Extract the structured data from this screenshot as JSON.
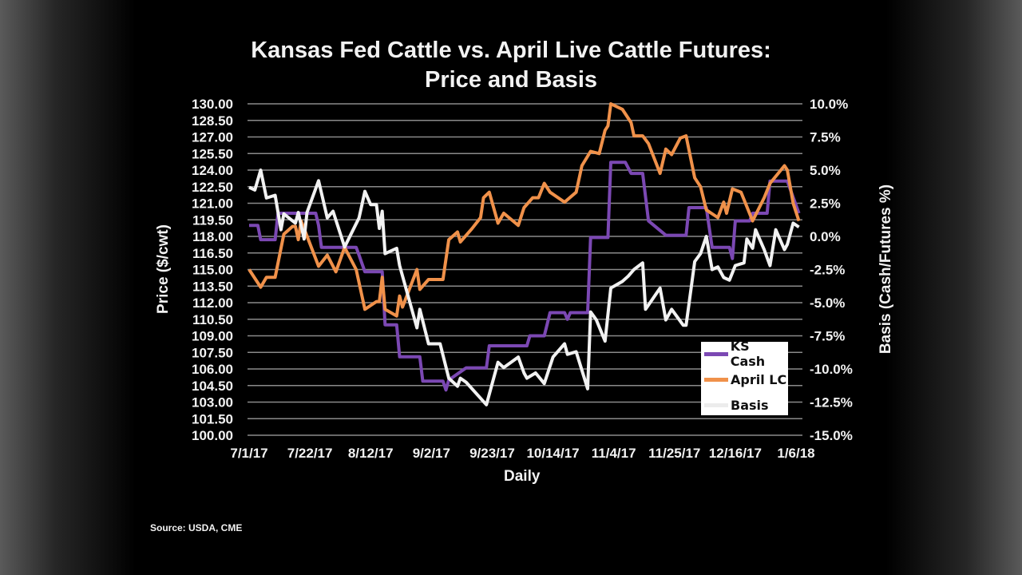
{
  "chart_data": {
    "type": "line",
    "title": "Kansas Fed Cattle vs. April Live Cattle Futures:",
    "subtitle": "Price and Basis",
    "xlabel": "Daily",
    "ylabel": "Price ($/cwt)",
    "y2label": "Basis (Cash/Futures %)",
    "source": "Source: USDA, CME",
    "xlim": [
      "2017-07-01",
      "2018-01-07"
    ],
    "ylim": [
      100,
      130
    ],
    "y2lim": [
      -15,
      10
    ],
    "grid": true,
    "legend_position": "bottom-right",
    "x_ticks": [
      {
        "date": "2017-07-01",
        "label": "7/1/17"
      },
      {
        "date": "2017-07-22",
        "label": "7/22/17"
      },
      {
        "date": "2017-08-12",
        "label": "8/12/17"
      },
      {
        "date": "2017-09-02",
        "label": "9/2/17"
      },
      {
        "date": "2017-09-23",
        "label": "9/23/17"
      },
      {
        "date": "2017-10-14",
        "label": "10/14/17"
      },
      {
        "date": "2017-11-04",
        "label": "11/4/17"
      },
      {
        "date": "2017-11-25",
        "label": "11/25/17"
      },
      {
        "date": "2017-12-16",
        "label": "12/16/17"
      },
      {
        "date": "2018-01-06",
        "label": "1/6/18"
      }
    ],
    "y_ticks": [
      "130.00",
      "128.50",
      "127.00",
      "125.50",
      "124.00",
      "122.50",
      "121.00",
      "119.50",
      "118.00",
      "116.50",
      "115.00",
      "113.50",
      "112.00",
      "110.50",
      "109.00",
      "107.50",
      "106.00",
      "104.50",
      "103.00",
      "101.50",
      "100.00"
    ],
    "y2_ticks": [
      "10.0%",
      "7.5%",
      "5.0%",
      "2.5%",
      "0.0%",
      "-2.5%",
      "-5.0%",
      "-7.5%",
      "-10.0%",
      "-12.5%",
      "-15.0%"
    ],
    "series": [
      {
        "name": "KS Cash",
        "axis": "left",
        "color": "#7b48b3",
        "points": [
          [
            "2017-07-01",
            119.0
          ],
          [
            "2017-07-04",
            119.0
          ],
          [
            "2017-07-05",
            117.7
          ],
          [
            "2017-07-10",
            117.7
          ],
          [
            "2017-07-11",
            120.1
          ],
          [
            "2017-07-24",
            120.1
          ],
          [
            "2017-07-25",
            119.0
          ],
          [
            "2017-07-26",
            117.0
          ],
          [
            "2017-08-07",
            117.0
          ],
          [
            "2017-08-08",
            116.3
          ],
          [
            "2017-08-10",
            114.8
          ],
          [
            "2017-08-16",
            114.8
          ],
          [
            "2017-08-17",
            110.0
          ],
          [
            "2017-08-21",
            110.0
          ],
          [
            "2017-08-22",
            107.1
          ],
          [
            "2017-08-29",
            107.1
          ],
          [
            "2017-08-30",
            104.9
          ],
          [
            "2017-09-06",
            104.9
          ],
          [
            "2017-09-07",
            104.1
          ],
          [
            "2017-09-08",
            105.0
          ],
          [
            "2017-09-14",
            106.1
          ],
          [
            "2017-09-21",
            106.1
          ],
          [
            "2017-09-22",
            108.1
          ],
          [
            "2017-10-05",
            108.1
          ],
          [
            "2017-10-06",
            109.0
          ],
          [
            "2017-10-11",
            109.0
          ],
          [
            "2017-10-13",
            111.1
          ],
          [
            "2017-10-18",
            111.1
          ],
          [
            "2017-10-19",
            110.5
          ],
          [
            "2017-10-20",
            111.1
          ],
          [
            "2017-10-26",
            111.1
          ],
          [
            "2017-10-27",
            117.9
          ],
          [
            "2017-11-02",
            117.9
          ],
          [
            "2017-11-03",
            124.7
          ],
          [
            "2017-11-08",
            124.7
          ],
          [
            "2017-11-10",
            123.7
          ],
          [
            "2017-11-14",
            123.7
          ],
          [
            "2017-11-16",
            119.4
          ],
          [
            "2017-11-22",
            118.1
          ],
          [
            "2017-11-29",
            118.1
          ],
          [
            "2017-11-30",
            120.6
          ],
          [
            "2017-12-06",
            120.6
          ],
          [
            "2017-12-08",
            117.0
          ],
          [
            "2017-12-14",
            117.0
          ],
          [
            "2017-12-15",
            116.0
          ],
          [
            "2017-12-16",
            119.4
          ],
          [
            "2017-12-21",
            119.4
          ],
          [
            "2017-12-22",
            120.1
          ],
          [
            "2017-12-27",
            120.1
          ],
          [
            "2017-12-28",
            123.0
          ],
          [
            "2018-01-03",
            123.0
          ],
          [
            "2018-01-07",
            120.1
          ]
        ]
      },
      {
        "name": "April LC",
        "axis": "left",
        "color": "#f0914a",
        "points": [
          [
            "2017-07-01",
            115.0
          ],
          [
            "2017-07-05",
            113.4
          ],
          [
            "2017-07-07",
            114.3
          ],
          [
            "2017-07-10",
            114.3
          ],
          [
            "2017-07-13",
            118.2
          ],
          [
            "2017-07-16",
            118.9
          ],
          [
            "2017-07-17",
            118.9
          ],
          [
            "2017-07-18",
            117.7
          ],
          [
            "2017-07-19",
            119.4
          ],
          [
            "2017-07-25",
            115.3
          ],
          [
            "2017-07-28",
            116.3
          ],
          [
            "2017-07-31",
            114.8
          ],
          [
            "2017-08-03",
            117.0
          ],
          [
            "2017-08-07",
            115.0
          ],
          [
            "2017-08-10",
            111.4
          ],
          [
            "2017-08-14",
            112.1
          ],
          [
            "2017-08-15",
            112.1
          ],
          [
            "2017-08-16",
            114.3
          ],
          [
            "2017-08-17",
            111.4
          ],
          [
            "2017-08-21",
            110.8
          ],
          [
            "2017-08-22",
            112.6
          ],
          [
            "2017-08-23",
            111.6
          ],
          [
            "2017-08-28",
            115.0
          ],
          [
            "2017-08-29",
            113.2
          ],
          [
            "2017-09-01",
            114.1
          ],
          [
            "2017-09-06",
            114.1
          ],
          [
            "2017-09-08",
            117.7
          ],
          [
            "2017-09-11",
            118.4
          ],
          [
            "2017-09-12",
            117.5
          ],
          [
            "2017-09-16",
            118.7
          ],
          [
            "2017-09-19",
            119.7
          ],
          [
            "2017-09-20",
            121.5
          ],
          [
            "2017-09-22",
            122.0
          ],
          [
            "2017-09-25",
            119.2
          ],
          [
            "2017-09-27",
            120.1
          ],
          [
            "2017-10-02",
            119.0
          ],
          [
            "2017-10-04",
            120.6
          ],
          [
            "2017-10-07",
            121.5
          ],
          [
            "2017-10-09",
            121.5
          ],
          [
            "2017-10-11",
            122.8
          ],
          [
            "2017-10-13",
            122.0
          ],
          [
            "2017-10-18",
            121.1
          ],
          [
            "2017-10-22",
            122.0
          ],
          [
            "2017-10-24",
            124.4
          ],
          [
            "2017-10-27",
            125.7
          ],
          [
            "2017-10-30",
            125.5
          ],
          [
            "2017-11-01",
            127.6
          ],
          [
            "2017-11-02",
            128.0
          ],
          [
            "2017-11-03",
            130.0
          ],
          [
            "2017-11-07",
            129.5
          ],
          [
            "2017-11-10",
            128.3
          ],
          [
            "2017-11-11",
            127.1
          ],
          [
            "2017-11-14",
            127.1
          ],
          [
            "2017-11-16",
            126.4
          ],
          [
            "2017-11-20",
            123.7
          ],
          [
            "2017-11-22",
            125.9
          ],
          [
            "2017-11-24",
            125.4
          ],
          [
            "2017-11-27",
            126.9
          ],
          [
            "2017-11-29",
            127.1
          ],
          [
            "2017-12-02",
            123.3
          ],
          [
            "2017-12-04",
            122.5
          ],
          [
            "2017-12-06",
            120.4
          ],
          [
            "2017-12-10",
            119.7
          ],
          [
            "2017-12-12",
            121.1
          ],
          [
            "2017-12-13",
            120.1
          ],
          [
            "2017-12-15",
            122.3
          ],
          [
            "2017-12-18",
            122.0
          ],
          [
            "2017-12-22",
            119.4
          ],
          [
            "2017-12-26",
            121.5
          ],
          [
            "2017-12-28",
            122.8
          ],
          [
            "2018-01-02",
            124.4
          ],
          [
            "2018-01-03",
            124.0
          ],
          [
            "2018-01-05",
            121.0
          ],
          [
            "2018-01-07",
            119.4
          ]
        ]
      },
      {
        "name": "Basis",
        "axis": "right",
        "color": "#f2f2f2",
        "points": [
          [
            "2017-07-01",
            3.7
          ],
          [
            "2017-07-03",
            3.5
          ],
          [
            "2017-07-05",
            5.0
          ],
          [
            "2017-07-07",
            2.9
          ],
          [
            "2017-07-10",
            3.1
          ],
          [
            "2017-07-12",
            0.5
          ],
          [
            "2017-07-13",
            1.7
          ],
          [
            "2017-07-17",
            1.0
          ],
          [
            "2017-07-18",
            1.8
          ],
          [
            "2017-07-20",
            -0.2
          ],
          [
            "2017-07-21",
            1.8
          ],
          [
            "2017-07-25",
            4.2
          ],
          [
            "2017-07-28",
            1.4
          ],
          [
            "2017-07-30",
            1.9
          ],
          [
            "2017-08-03",
            -0.8
          ],
          [
            "2017-08-08",
            1.4
          ],
          [
            "2017-08-10",
            3.4
          ],
          [
            "2017-08-12",
            2.4
          ],
          [
            "2017-08-14",
            2.4
          ],
          [
            "2017-08-15",
            0.6
          ],
          [
            "2017-08-16",
            1.9
          ],
          [
            "2017-08-17",
            -1.3
          ],
          [
            "2017-08-21",
            -0.9
          ],
          [
            "2017-08-22",
            -2.2
          ],
          [
            "2017-08-28",
            -6.9
          ],
          [
            "2017-08-29",
            -5.5
          ],
          [
            "2017-09-01",
            -8.1
          ],
          [
            "2017-09-05",
            -8.1
          ],
          [
            "2017-09-08",
            -10.7
          ],
          [
            "2017-09-11",
            -11.3
          ],
          [
            "2017-09-12",
            -10.7
          ],
          [
            "2017-09-14",
            -11.0
          ],
          [
            "2017-09-21",
            -12.7
          ],
          [
            "2017-09-25",
            -9.5
          ],
          [
            "2017-09-27",
            -9.9
          ],
          [
            "2017-10-02",
            -9.1
          ],
          [
            "2017-10-04",
            -10.3
          ],
          [
            "2017-10-05",
            -10.7
          ],
          [
            "2017-10-08",
            -10.3
          ],
          [
            "2017-10-11",
            -11.1
          ],
          [
            "2017-10-14",
            -9.1
          ],
          [
            "2017-10-18",
            -8.1
          ],
          [
            "2017-10-19",
            -8.9
          ],
          [
            "2017-10-22",
            -8.7
          ],
          [
            "2017-10-26",
            -11.5
          ],
          [
            "2017-10-27",
            -5.7
          ],
          [
            "2017-10-29",
            -6.3
          ],
          [
            "2017-11-01",
            -7.9
          ],
          [
            "2017-11-03",
            -3.9
          ],
          [
            "2017-11-07",
            -3.4
          ],
          [
            "2017-11-09",
            -3.0
          ],
          [
            "2017-11-11",
            -2.5
          ],
          [
            "2017-11-14",
            -2.0
          ],
          [
            "2017-11-15",
            -5.5
          ],
          [
            "2017-11-20",
            -3.9
          ],
          [
            "2017-11-22",
            -6.3
          ],
          [
            "2017-11-24",
            -5.5
          ],
          [
            "2017-11-28",
            -6.7
          ],
          [
            "2017-11-29",
            -6.7
          ],
          [
            "2017-12-02",
            -1.9
          ],
          [
            "2017-12-04",
            -1.3
          ],
          [
            "2017-12-06",
            0.0
          ],
          [
            "2017-12-08",
            -2.5
          ],
          [
            "2017-12-10",
            -2.3
          ],
          [
            "2017-12-12",
            -3.1
          ],
          [
            "2017-12-14",
            -3.3
          ],
          [
            "2017-12-16",
            -2.2
          ],
          [
            "2017-12-19",
            -2.0
          ],
          [
            "2017-12-20",
            -0.2
          ],
          [
            "2017-12-22",
            -0.9
          ],
          [
            "2017-12-23",
            0.5
          ],
          [
            "2017-12-26",
            -1.0
          ],
          [
            "2017-12-28",
            -2.2
          ],
          [
            "2017-12-30",
            0.5
          ],
          [
            "2018-01-02",
            -1.0
          ],
          [
            "2018-01-03",
            -0.6
          ],
          [
            "2018-01-05",
            1.0
          ],
          [
            "2018-01-07",
            0.7
          ]
        ]
      }
    ]
  }
}
